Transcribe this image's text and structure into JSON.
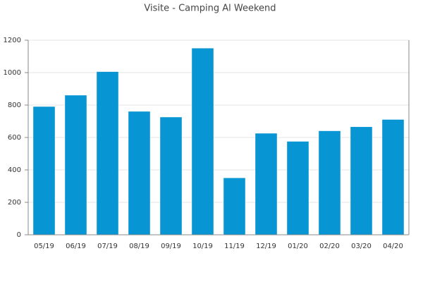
{
  "chart_data": {
    "type": "bar",
    "title": "Visite - Camping Al Weekend",
    "categories": [
      "05/19",
      "06/19",
      "07/19",
      "08/19",
      "09/19",
      "10/19",
      "11/19",
      "12/19",
      "01/20",
      "02/20",
      "03/20",
      "04/20"
    ],
    "values": [
      790,
      860,
      1005,
      760,
      725,
      1150,
      350,
      625,
      575,
      640,
      665,
      710
    ],
    "color": "#0796d3",
    "ylim": [
      0,
      1200
    ],
    "yticks": [
      0,
      200,
      400,
      600,
      800,
      1000,
      1200
    ],
    "grid": true
  }
}
